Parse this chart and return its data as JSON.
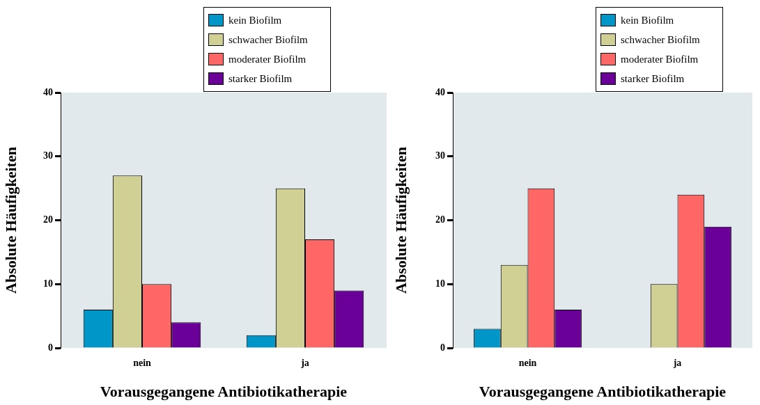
{
  "chart_data": [
    {
      "type": "bar",
      "xlabel": "Vorausgegangene Antibiotikatherapie",
      "ylabel": "Absolute Häufigkeiten",
      "categories": [
        "nein",
        "ja"
      ],
      "ylim": [
        0,
        40
      ],
      "yticks": [
        0,
        10,
        20,
        30,
        40
      ],
      "grid": false,
      "legend": "top right",
      "series": [
        {
          "name": "kein Biofilm",
          "color": "#0096c8",
          "values": [
            6,
            2
          ]
        },
        {
          "name": "schwacher Biofilm",
          "color": "#d0cf94",
          "values": [
            27,
            25
          ]
        },
        {
          "name": "moderater Biofilm",
          "color": "#ff6666",
          "values": [
            10,
            17
          ]
        },
        {
          "name": "starker Biofilm",
          "color": "#6a0098",
          "values": [
            4,
            9
          ]
        }
      ]
    },
    {
      "type": "bar",
      "xlabel": "Vorausgegangene Antibiotikatherapie",
      "ylabel": "Absolute Häufigkeiten",
      "categories": [
        "nein",
        "ja"
      ],
      "ylim": [
        0,
        40
      ],
      "yticks": [
        0,
        10,
        20,
        30,
        40
      ],
      "grid": false,
      "legend": "top right",
      "series": [
        {
          "name": "kein Biofilm",
          "color": "#0096c8",
          "values": [
            3,
            0
          ]
        },
        {
          "name": "schwacher Biofilm",
          "color": "#d0cf94",
          "values": [
            13,
            10
          ]
        },
        {
          "name": "moderater Biofilm",
          "color": "#ff6666",
          "values": [
            25,
            24
          ]
        },
        {
          "name": "starker Biofilm",
          "color": "#6a0098",
          "values": [
            6,
            19
          ]
        }
      ]
    }
  ]
}
